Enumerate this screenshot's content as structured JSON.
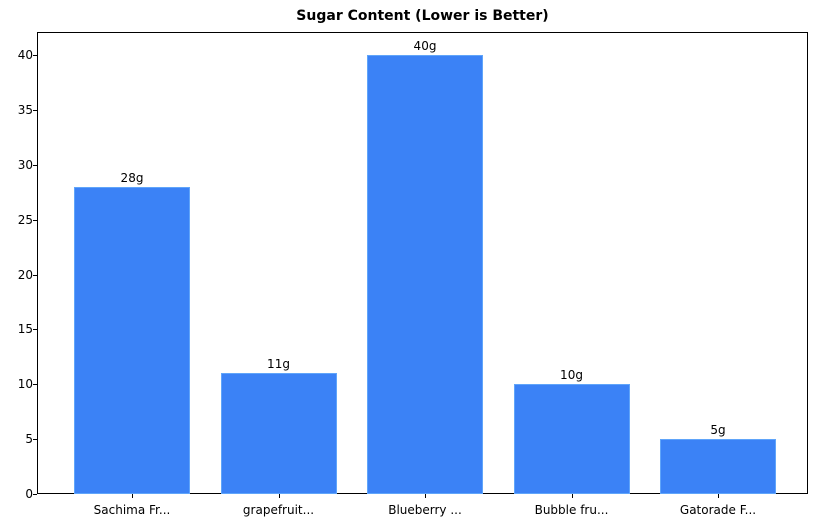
{
  "chart_data": {
    "type": "bar",
    "title": "Sugar Content (Lower is Better)",
    "xlabel": "",
    "ylabel": "",
    "categories": [
      "Sachima Fr...",
      "grapefruit...",
      "Blueberry ...",
      "Bubble fru...",
      "Gatorade F..."
    ],
    "values": [
      28,
      11,
      40,
      10,
      5
    ],
    "value_labels": [
      "28g",
      "11g",
      "40g",
      "10g",
      "5g"
    ],
    "ylim": [
      0,
      42
    ],
    "yticks": [
      0,
      5,
      10,
      15,
      20,
      25,
      30,
      35,
      40
    ],
    "grid": false,
    "legend": null,
    "bar_color": "#3b82f6",
    "bar_edge_color": "#60a5fa"
  }
}
